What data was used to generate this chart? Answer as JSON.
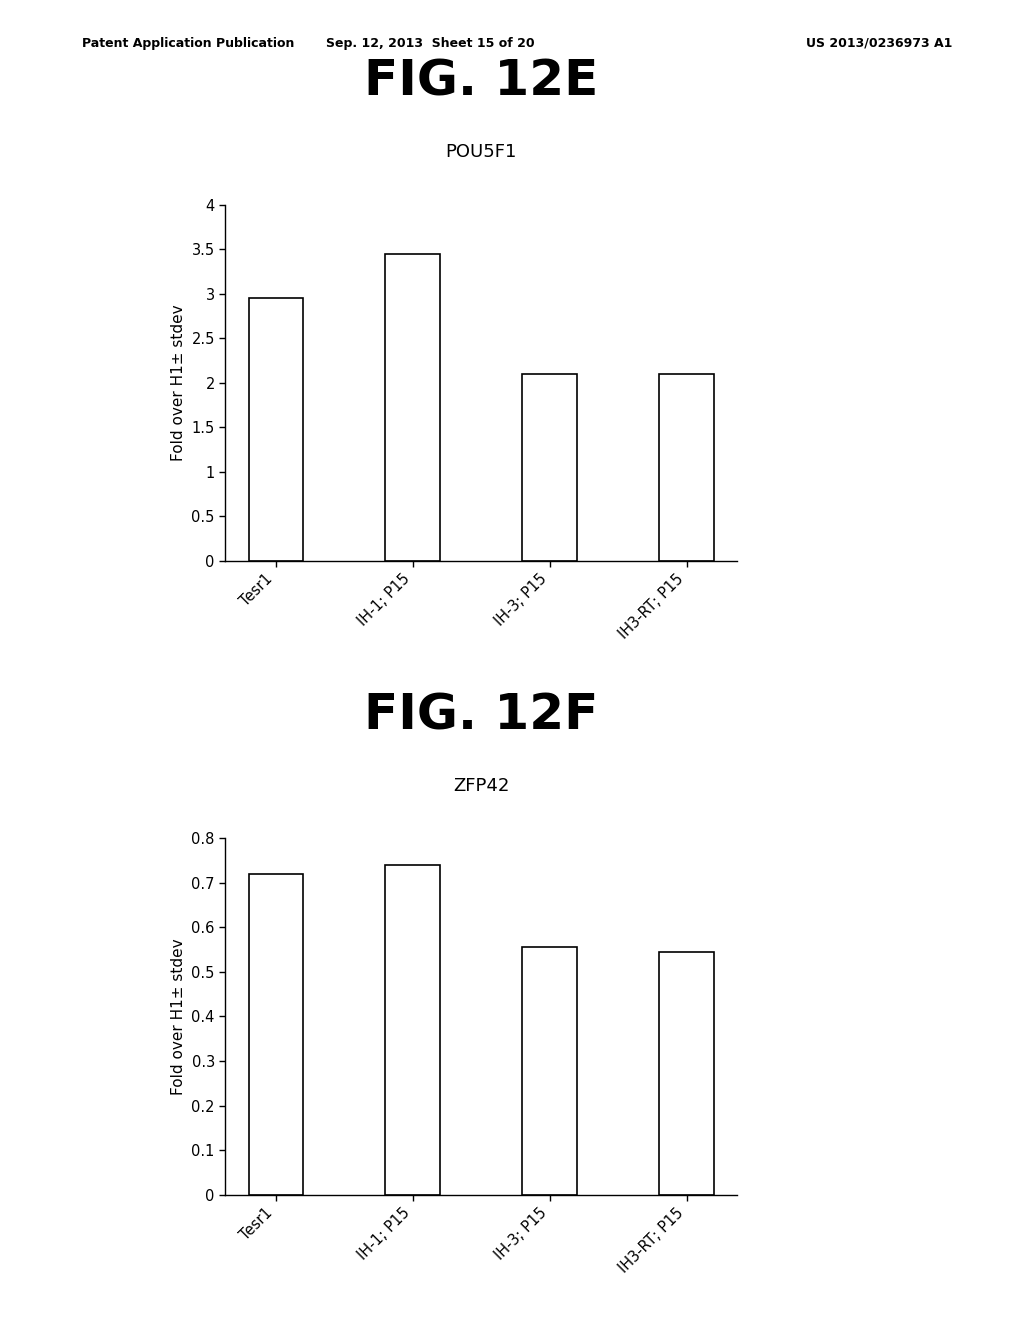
{
  "fig12e": {
    "title": "FIG. 12E",
    "subtitle": "POU5F1",
    "categories": [
      "Tesr1",
      "IH-1; P15",
      "IH-3; P15",
      "IH3-RT; P15"
    ],
    "values": [
      2.95,
      3.45,
      2.1,
      2.1
    ],
    "ylabel": "Fold over H1± stdev",
    "ylim": [
      0,
      4
    ],
    "yticks": [
      0,
      0.5,
      1,
      1.5,
      2,
      2.5,
      3,
      3.5,
      4
    ],
    "yticklabels": [
      "0",
      "0.5",
      "1",
      "1.5",
      "2",
      "2.5",
      "3",
      "3.5",
      "4"
    ]
  },
  "fig12f": {
    "title": "FIG. 12F",
    "subtitle": "ZFP42",
    "categories": [
      "Tesr1",
      "IH-1; P15",
      "IH-3; P15",
      "IH3-RT; P15"
    ],
    "values": [
      0.72,
      0.74,
      0.555,
      0.545
    ],
    "ylabel": "Fold over H1± stdev",
    "ylim": [
      0,
      0.8
    ],
    "yticks": [
      0,
      0.1,
      0.2,
      0.3,
      0.4,
      0.5,
      0.6,
      0.7,
      0.8
    ],
    "yticklabels": [
      "0",
      "0.1",
      "0.2",
      "0.3",
      "0.4",
      "0.5",
      "0.6",
      "0.7",
      "0.8"
    ]
  },
  "header_left": "Patent Application Publication",
  "header_mid": "Sep. 12, 2013  Sheet 15 of 20",
  "header_right": "US 2013/0236973 A1",
  "bar_color": "#ffffff",
  "bar_edgecolor": "#000000",
  "background_color": "#ffffff",
  "title_fontsize": 36,
  "subtitle_fontsize": 13,
  "ylabel_fontsize": 11,
  "tick_fontsize": 10.5,
  "header_fontsize": 9
}
